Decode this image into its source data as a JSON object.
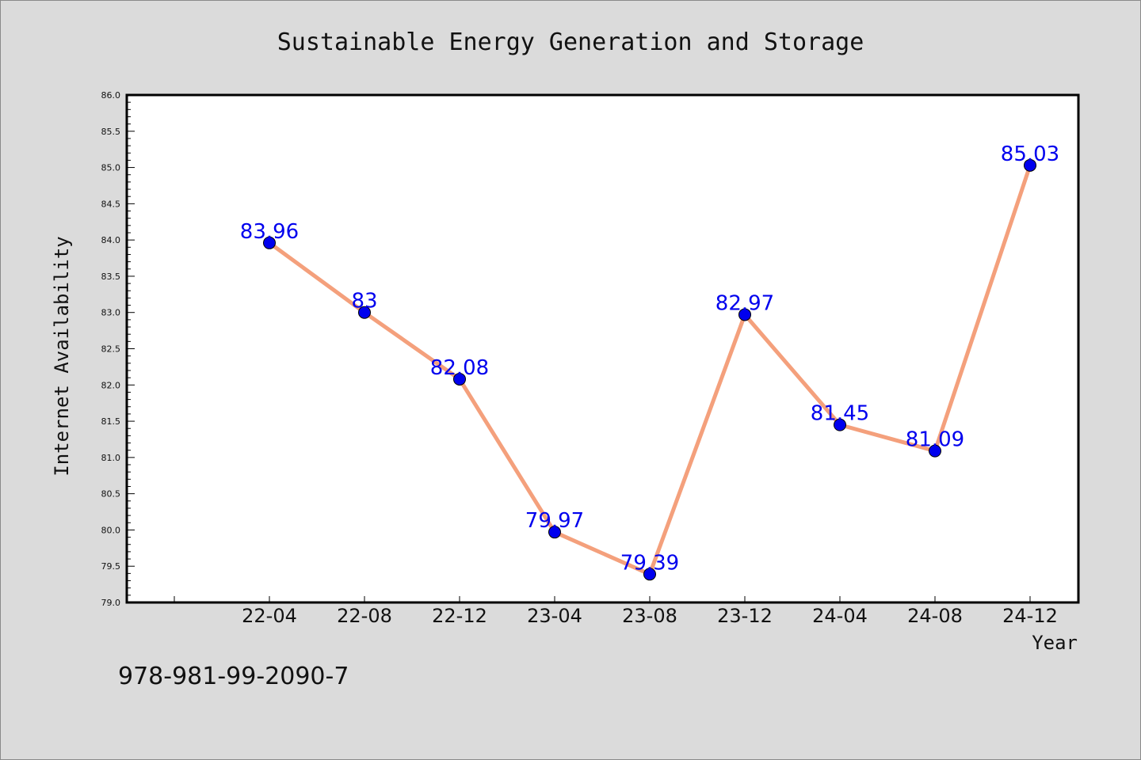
{
  "footer_id": "978-981-99-2090-7",
  "colors": {
    "background": "#dbdbdb",
    "line": "#f4a07c",
    "marker": "#0000ee",
    "data_label": "#0000ee"
  },
  "chart_data": {
    "type": "line",
    "title": "Sustainable Energy Generation and Storage",
    "xlabel": "Year",
    "ylabel": "Internet Availability",
    "categories": [
      "22-04",
      "22-08",
      "22-12",
      "23-04",
      "23-08",
      "23-12",
      "24-04",
      "24-08",
      "24-12"
    ],
    "series": [
      {
        "values": [
          83.96,
          83,
          82.08,
          79.97,
          79.39,
          82.97,
          81.45,
          81.09,
          85.03
        ]
      }
    ],
    "data_labels": [
      "83.96",
      "83",
      "82.08",
      "79.97",
      "79.39",
      "82.97",
      "81.45",
      "81.09",
      "85.03"
    ],
    "ylim": [
      79.0,
      86.0
    ],
    "yticks": [
      "79.0",
      "79.5",
      "80.0",
      "80.5",
      "81.0",
      "81.5",
      "82.0",
      "82.5",
      "83.0",
      "83.5",
      "84.0",
      "84.5",
      "85.0",
      "85.5",
      "86.0"
    ],
    "grid": false,
    "legend": "none"
  }
}
